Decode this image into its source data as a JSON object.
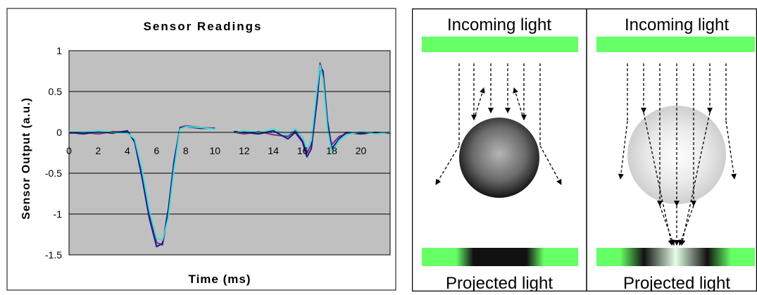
{
  "chart_data": {
    "type": "line",
    "title": "Sensor Readings",
    "xlabel": "Time (ms)",
    "ylabel": "Sensor Output (a.u.)",
    "xlim": [
      0,
      22
    ],
    "ylim": [
      -1.5,
      1
    ],
    "x_ticks": [
      0,
      2,
      4,
      6,
      8,
      10,
      12,
      14,
      16,
      18,
      20
    ],
    "y_ticks": [
      1,
      0.5,
      0,
      -0.5,
      -1,
      -1.5
    ],
    "y_tick_labels": [
      "1",
      "0.5",
      "0",
      "-0.5",
      "-1",
      "-1.5"
    ],
    "grid": true,
    "plot_background": "#c0c0c0",
    "series": [
      {
        "color": "#7b2d8e",
        "x": [
          0,
          1,
          2,
          3,
          4,
          4.5,
          5,
          5.5,
          6,
          6.4,
          6.8,
          7.2,
          7.6,
          8,
          9,
          10
        ],
        "y": [
          -0.01,
          0,
          -0.02,
          0.01,
          0,
          -0.1,
          -0.5,
          -1.0,
          -1.35,
          -1.38,
          -1.0,
          -0.4,
          0.06,
          0.08,
          0.06,
          0.05
        ]
      },
      {
        "color": "#1a1a8c",
        "x": [
          0,
          1,
          2,
          3,
          4,
          4.5,
          5,
          5.5,
          6,
          6.4,
          6.8,
          7.2,
          7.6,
          8,
          9,
          10
        ],
        "y": [
          0,
          -0.02,
          0.01,
          -0.01,
          0.02,
          -0.12,
          -0.55,
          -1.05,
          -1.4,
          -1.36,
          -0.95,
          -0.35,
          0.05,
          0.07,
          0.05,
          0.05
        ]
      },
      {
        "color": "#40e0d0",
        "x": [
          0,
          1,
          2,
          3,
          4,
          4.5,
          5,
          5.5,
          6,
          6.4,
          6.8,
          7.2,
          7.6,
          8,
          9,
          10
        ],
        "y": [
          0.01,
          0,
          0.02,
          0,
          -0.01,
          -0.08,
          -0.45,
          -0.95,
          -1.3,
          -1.32,
          -1.05,
          -0.45,
          0.04,
          0.07,
          0.06,
          0.04
        ]
      },
      {
        "color": "#7b2d8e",
        "x": [
          11.3,
          12,
          13,
          14,
          15,
          15.5,
          16,
          16.3,
          16.6,
          17,
          17.2,
          17.4,
          17.7,
          18,
          18.5,
          19,
          20,
          21,
          22
        ],
        "y": [
          0,
          -0.02,
          0.01,
          -0.03,
          -0.05,
          0.02,
          -0.1,
          -0.25,
          -0.15,
          0.5,
          0.85,
          0.7,
          0.1,
          -0.15,
          -0.05,
          -0.02,
          0,
          -0.01,
          0
        ]
      },
      {
        "color": "#1a1a8c",
        "x": [
          11.3,
          12,
          13,
          14,
          15,
          15.5,
          16,
          16.3,
          16.6,
          17,
          17.2,
          17.4,
          17.7,
          18,
          18.5,
          19,
          20,
          21,
          22
        ],
        "y": [
          0.01,
          0,
          -0.02,
          0.02,
          -0.08,
          0,
          -0.12,
          -0.3,
          -0.2,
          0.4,
          0.8,
          0.75,
          0.15,
          -0.2,
          -0.08,
          0,
          -0.02,
          0,
          -0.01
        ]
      },
      {
        "color": "#40e0d0",
        "x": [
          11.3,
          12,
          13,
          14,
          15,
          15.5,
          16,
          16.3,
          16.6,
          17,
          17.2,
          17.4,
          17.7,
          18,
          18.5,
          19,
          20,
          21,
          22
        ],
        "y": [
          -0.01,
          0.02,
          0,
          0.04,
          -0.03,
          0.05,
          -0.05,
          -0.2,
          -0.1,
          0.55,
          0.82,
          0.65,
          0.05,
          -0.25,
          -0.1,
          -0.03,
          0.01,
          -0.02,
          0
        ]
      }
    ]
  },
  "diagram": {
    "left": {
      "top_label": "Incoming light",
      "bottom_label": "Projected light"
    },
    "right": {
      "top_label": "Incoming light",
      "bottom_label": "Projected light"
    },
    "colors": {
      "bar_green": "#66ff66"
    }
  }
}
